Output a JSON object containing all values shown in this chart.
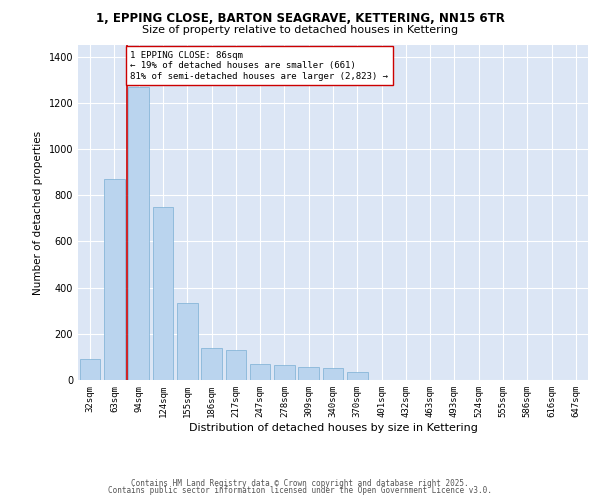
{
  "title_line1": "1, EPPING CLOSE, BARTON SEAGRAVE, KETTERING, NN15 6TR",
  "title_line2": "Size of property relative to detached houses in Kettering",
  "xlabel": "Distribution of detached houses by size in Kettering",
  "ylabel": "Number of detached properties",
  "categories": [
    "32sqm",
    "63sqm",
    "94sqm",
    "124sqm",
    "155sqm",
    "186sqm",
    "217sqm",
    "247sqm",
    "278sqm",
    "309sqm",
    "340sqm",
    "370sqm",
    "401sqm",
    "432sqm",
    "463sqm",
    "493sqm",
    "524sqm",
    "555sqm",
    "586sqm",
    "616sqm",
    "647sqm"
  ],
  "bar_heights": [
    90,
    870,
    1270,
    750,
    335,
    140,
    130,
    70,
    65,
    55,
    50,
    35,
    0,
    0,
    0,
    0,
    0,
    0,
    0,
    0,
    0
  ],
  "bar_color": "#bad4ee",
  "bar_edge_color": "#7aafd4",
  "background_color": "#dce6f5",
  "grid_color": "#ffffff",
  "vline_color": "#cc0000",
  "annotation_text": "1 EPPING CLOSE: 86sqm\n← 19% of detached houses are smaller (661)\n81% of semi-detached houses are larger (2,823) →",
  "annotation_box_facecolor": "#ffffff",
  "annotation_box_edgecolor": "#cc0000",
  "ylim": [
    0,
    1450
  ],
  "yticks": [
    0,
    200,
    400,
    600,
    800,
    1000,
    1200,
    1400
  ],
  "fig_facecolor": "#ffffff",
  "footer_line1": "Contains HM Land Registry data © Crown copyright and database right 2025.",
  "footer_line2": "Contains public sector information licensed under the Open Government Licence v3.0."
}
